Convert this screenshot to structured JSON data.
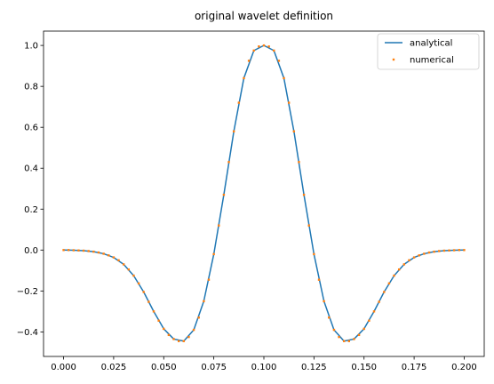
{
  "chart_data": {
    "type": "line",
    "title": "original wavelet definition",
    "xlabel": "",
    "ylabel": "",
    "xlim": [
      -0.01,
      0.21
    ],
    "ylim": [
      -0.52,
      1.07
    ],
    "xticks": [
      0.0,
      0.025,
      0.05,
      0.075,
      0.1,
      0.125,
      0.15,
      0.175,
      0.2
    ],
    "xtick_labels": [
      "0.000",
      "0.025",
      "0.050",
      "0.075",
      "0.100",
      "0.125",
      "0.150",
      "0.175",
      "0.200"
    ],
    "yticks": [
      -0.4,
      -0.2,
      0.0,
      0.2,
      0.4,
      0.6,
      0.8,
      1.0
    ],
    "ytick_labels": [
      "−0.4",
      "−0.2",
      "0.0",
      "0.2",
      "0.4",
      "0.6",
      "0.8",
      "1.0"
    ],
    "grid": false,
    "legend_position": "top-right",
    "series": [
      {
        "name": "analytical",
        "style": "line",
        "color": "#1f77b4",
        "x": [
          0.0,
          0.005,
          0.01,
          0.015,
          0.02,
          0.025,
          0.03,
          0.035,
          0.04,
          0.045,
          0.05,
          0.055,
          0.06,
          0.065,
          0.07,
          0.075,
          0.08,
          0.085,
          0.09,
          0.095,
          0.1,
          0.105,
          0.11,
          0.115,
          0.12,
          0.125,
          0.13,
          0.135,
          0.14,
          0.145,
          0.15,
          0.155,
          0.16,
          0.165,
          0.17,
          0.175,
          0.18,
          0.185,
          0.19,
          0.195,
          0.2
        ],
        "y": [
          0.0,
          -0.001,
          -0.003,
          -0.008,
          -0.018,
          -0.036,
          -0.07,
          -0.125,
          -0.205,
          -0.3,
          -0.385,
          -0.435,
          -0.445,
          -0.39,
          -0.25,
          -0.02,
          0.27,
          0.58,
          0.84,
          0.975,
          1.0,
          0.975,
          0.84,
          0.58,
          0.27,
          -0.02,
          -0.25,
          -0.39,
          -0.445,
          -0.435,
          -0.385,
          -0.3,
          -0.205,
          -0.125,
          -0.07,
          -0.036,
          -0.018,
          -0.008,
          -0.003,
          -0.001,
          0.0
        ]
      },
      {
        "name": "numerical",
        "style": "scatter",
        "color": "#ff7f0e",
        "x": [
          0.0,
          0.0025,
          0.005,
          0.0075,
          0.01,
          0.0125,
          0.015,
          0.0175,
          0.02,
          0.0225,
          0.025,
          0.0275,
          0.03,
          0.0325,
          0.035,
          0.0375,
          0.04,
          0.0425,
          0.045,
          0.0475,
          0.05,
          0.0525,
          0.055,
          0.0575,
          0.06,
          0.0625,
          0.065,
          0.0675,
          0.07,
          0.0725,
          0.075,
          0.0775,
          0.08,
          0.0825,
          0.085,
          0.0875,
          0.09,
          0.0925,
          0.095,
          0.0975,
          0.1,
          0.1025,
          0.105,
          0.1075,
          0.11,
          0.1125,
          0.115,
          0.1175,
          0.12,
          0.1225,
          0.125,
          0.1275,
          0.13,
          0.1325,
          0.135,
          0.1375,
          0.14,
          0.1425,
          0.145,
          0.1475,
          0.15,
          0.1525,
          0.155,
          0.1575,
          0.16,
          0.1625,
          0.165,
          0.1675,
          0.17,
          0.1725,
          0.175,
          0.1775,
          0.18,
          0.1825,
          0.185,
          0.1875,
          0.19,
          0.1925,
          0.195,
          0.1975,
          0.2
        ],
        "y": [
          0.0,
          0.0,
          -0.001,
          -0.002,
          -0.003,
          -0.005,
          -0.008,
          -0.012,
          -0.018,
          -0.026,
          -0.036,
          -0.05,
          -0.07,
          -0.095,
          -0.125,
          -0.163,
          -0.205,
          -0.253,
          -0.3,
          -0.345,
          -0.385,
          -0.415,
          -0.435,
          -0.445,
          -0.445,
          -0.425,
          -0.39,
          -0.33,
          -0.25,
          -0.145,
          -0.02,
          0.12,
          0.27,
          0.43,
          0.58,
          0.72,
          0.84,
          0.925,
          0.975,
          0.995,
          1.0,
          0.995,
          0.975,
          0.925,
          0.84,
          0.72,
          0.58,
          0.43,
          0.27,
          0.12,
          -0.02,
          -0.145,
          -0.25,
          -0.33,
          -0.39,
          -0.425,
          -0.445,
          -0.445,
          -0.435,
          -0.415,
          -0.385,
          -0.345,
          -0.3,
          -0.253,
          -0.205,
          -0.163,
          -0.125,
          -0.095,
          -0.07,
          -0.05,
          -0.036,
          -0.026,
          -0.018,
          -0.012,
          -0.008,
          -0.005,
          -0.003,
          -0.002,
          -0.001,
          0.0,
          0.0
        ]
      }
    ]
  }
}
